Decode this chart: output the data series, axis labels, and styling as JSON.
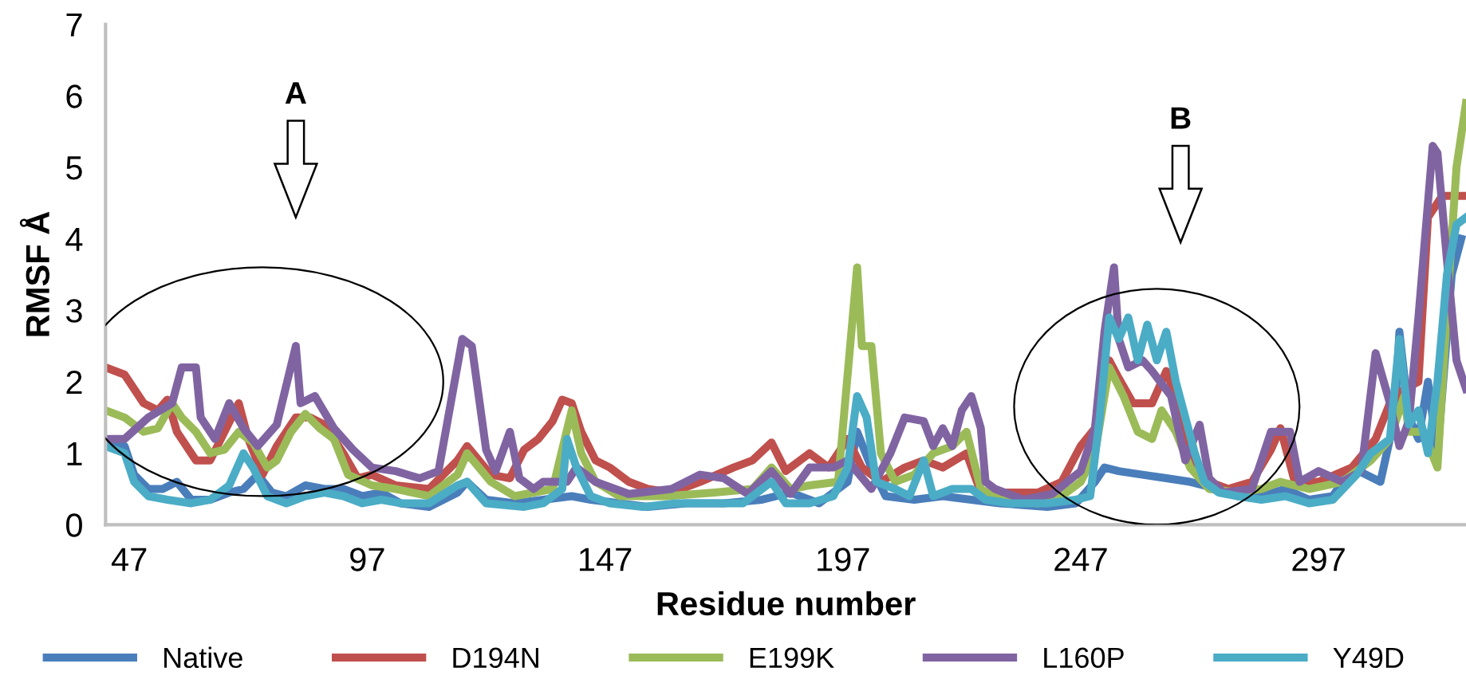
{
  "chart_data": {
    "type": "line",
    "xlabel": "Residue number",
    "ylabel": "RMSF Å",
    "xlim": [
      42,
      328
    ],
    "xticks": [
      47,
      97,
      147,
      197,
      247,
      297
    ],
    "ylim": [
      0,
      7
    ],
    "yticks": [
      0,
      1,
      2,
      3,
      4,
      5,
      6,
      7
    ],
    "grid": false,
    "legend": "bottom",
    "marker": "none",
    "line_style": "solid",
    "annotations": [
      "A",
      "B"
    ],
    "series": [
      {
        "name": "Native",
        "color": "#4a7ebb",
        "x": [
          42,
          46,
          48,
          51,
          54,
          57,
          60,
          64,
          68,
          71,
          74,
          77,
          80,
          84,
          88,
          92,
          96,
          100,
          104,
          110,
          116,
          118,
          122,
          128,
          134,
          140,
          144,
          150,
          156,
          164,
          172,
          180,
          186,
          192,
          198,
          200,
          203,
          206,
          212,
          218,
          224,
          230,
          240,
          246,
          250,
          252,
          255,
          260,
          265,
          270,
          273,
          276,
          280,
          285,
          290,
          295,
          300,
          304,
          310,
          313,
          314,
          316,
          318,
          320,
          322,
          325,
          327
        ],
        "values": [
          1.2,
          1.1,
          0.7,
          0.5,
          0.5,
          0.6,
          0.35,
          0.35,
          0.45,
          0.5,
          0.7,
          0.45,
          0.4,
          0.55,
          0.5,
          0.5,
          0.4,
          0.45,
          0.3,
          0.25,
          0.45,
          0.6,
          0.35,
          0.3,
          0.35,
          0.4,
          0.35,
          0.3,
          0.25,
          0.3,
          0.3,
          0.35,
          0.45,
          0.3,
          0.6,
          1.3,
          0.8,
          0.4,
          0.35,
          0.4,
          0.35,
          0.3,
          0.25,
          0.3,
          0.6,
          0.8,
          0.75,
          0.7,
          0.65,
          0.6,
          0.55,
          0.5,
          0.4,
          0.4,
          0.5,
          0.35,
          0.4,
          0.8,
          0.6,
          1.5,
          2.7,
          1.5,
          1.2,
          2.0,
          1.0,
          3.5,
          4.0
        ]
      },
      {
        "name": "D194N",
        "color": "#c0504d",
        "x": [
          42,
          46,
          50,
          53,
          55,
          57,
          61,
          64,
          67,
          70,
          72,
          75,
          78,
          82,
          85,
          88,
          92,
          95,
          98,
          103,
          110,
          116,
          118,
          123,
          127,
          130,
          133,
          136,
          138,
          140,
          142,
          145,
          148,
          152,
          156,
          161,
          167,
          174,
          178,
          182,
          185,
          190,
          194,
          198,
          201,
          205,
          210,
          214,
          218,
          223,
          226,
          230,
          238,
          243,
          247,
          250,
          253,
          255,
          258,
          262,
          265,
          268,
          271,
          274,
          278,
          283,
          287,
          289,
          292,
          297,
          304,
          309,
          312,
          315,
          318,
          320,
          323,
          326,
          328
        ],
        "values": [
          2.2,
          2.1,
          1.7,
          1.6,
          1.75,
          1.3,
          0.9,
          0.9,
          1.3,
          1.7,
          1.2,
          0.7,
          1.1,
          1.5,
          1.5,
          1.4,
          1.0,
          0.65,
          0.7,
          0.55,
          0.5,
          0.9,
          1.1,
          0.7,
          0.65,
          1.05,
          1.2,
          1.45,
          1.75,
          1.7,
          1.3,
          0.9,
          0.8,
          0.6,
          0.5,
          0.45,
          0.6,
          0.8,
          0.9,
          1.15,
          0.75,
          1.0,
          0.8,
          1.2,
          0.8,
          0.6,
          0.8,
          0.9,
          0.8,
          1.0,
          0.45,
          0.45,
          0.45,
          0.6,
          1.1,
          1.35,
          2.3,
          2.05,
          1.7,
          1.7,
          2.15,
          1.6,
          0.8,
          0.6,
          0.5,
          0.6,
          1.05,
          1.35,
          0.6,
          0.6,
          0.8,
          1.2,
          1.7,
          1.9,
          2.0,
          4.3,
          4.6,
          4.6,
          4.6
        ]
      },
      {
        "name": "E199K",
        "color": "#9bbb59",
        "x": [
          42,
          46,
          50,
          53,
          56,
          58,
          61,
          64,
          67,
          70,
          73,
          76,
          78,
          81,
          84,
          87,
          90,
          93,
          98,
          103,
          110,
          116,
          118,
          123,
          128,
          132,
          136,
          140,
          142,
          145,
          150,
          160,
          170,
          178,
          182,
          186,
          190,
          196,
          200,
          201,
          203,
          205,
          208,
          212,
          216,
          220,
          223,
          226,
          230,
          238,
          243,
          247,
          250,
          253,
          256,
          259,
          262,
          264,
          267,
          270,
          274,
          280,
          285,
          289,
          295,
          302,
          308,
          312,
          315,
          316,
          319,
          322,
          324,
          326,
          328
        ],
        "values": [
          1.6,
          1.5,
          1.3,
          1.35,
          1.7,
          1.5,
          1.3,
          1.0,
          1.05,
          1.3,
          1.15,
          0.8,
          0.9,
          1.3,
          1.55,
          1.35,
          1.2,
          0.7,
          0.55,
          0.5,
          0.4,
          0.7,
          1.0,
          0.6,
          0.4,
          0.45,
          0.5,
          1.6,
          1.0,
          0.6,
          0.4,
          0.4,
          0.45,
          0.5,
          0.8,
          0.5,
          0.55,
          0.6,
          3.6,
          2.5,
          2.5,
          1.0,
          0.6,
          0.7,
          1.0,
          1.1,
          1.3,
          0.5,
          0.35,
          0.3,
          0.4,
          0.6,
          1.0,
          2.2,
          1.8,
          1.3,
          1.2,
          1.6,
          1.3,
          0.8,
          0.5,
          0.45,
          0.5,
          0.6,
          0.5,
          0.6,
          0.9,
          1.2,
          1.8,
          1.3,
          1.3,
          0.8,
          3.0,
          5.0,
          5.9
        ]
      },
      {
        "name": "L160P",
        "color": "#8064a2",
        "x": [
          42,
          46,
          51,
          56,
          58,
          61,
          62,
          65,
          68,
          71,
          74,
          78,
          82,
          83,
          86,
          90,
          94,
          98,
          103,
          108,
          112,
          117,
          119,
          122,
          124,
          127,
          129,
          132,
          134,
          139,
          141,
          145,
          152,
          161,
          167,
          172,
          177,
          182,
          186,
          190,
          195,
          198,
          203,
          207,
          210,
          214,
          216,
          218,
          220,
          222,
          224,
          226,
          227,
          229,
          235,
          241,
          247,
          250,
          252,
          254,
          255,
          257,
          260,
          262,
          266,
          269,
          272,
          274,
          277,
          283,
          287,
          291,
          293,
          297,
          302,
          306,
          309,
          312,
          314,
          316,
          318,
          321,
          322,
          324,
          326,
          328
        ],
        "values": [
          1.2,
          1.2,
          1.5,
          1.7,
          2.2,
          2.2,
          1.5,
          1.2,
          1.7,
          1.35,
          1.1,
          1.4,
          2.5,
          1.7,
          1.8,
          1.35,
          1.05,
          0.8,
          0.75,
          0.65,
          0.75,
          2.6,
          2.5,
          1.05,
          0.75,
          1.3,
          0.65,
          0.5,
          0.6,
          0.6,
          0.8,
          0.6,
          0.43,
          0.5,
          0.7,
          0.65,
          0.43,
          0.75,
          0.43,
          0.8,
          0.8,
          0.9,
          0.5,
          1.0,
          1.5,
          1.45,
          1.1,
          1.35,
          1.1,
          1.6,
          1.8,
          1.35,
          0.6,
          0.5,
          0.35,
          0.43,
          0.75,
          1.35,
          2.7,
          3.6,
          2.6,
          2.2,
          2.3,
          2.15,
          1.8,
          0.9,
          1.4,
          0.65,
          0.45,
          0.5,
          1.3,
          1.3,
          0.6,
          0.75,
          0.6,
          0.75,
          2.4,
          1.7,
          1.1,
          1.45,
          2.9,
          5.3,
          5.2,
          3.7,
          2.3,
          1.9
        ]
      },
      {
        "name": "Y49D",
        "color": "#4bacc6",
        "x": [
          42,
          46,
          48,
          51,
          55,
          60,
          64,
          68,
          71,
          73,
          76,
          80,
          84,
          88,
          92,
          96,
          100,
          104,
          110,
          116,
          118,
          122,
          130,
          134,
          138,
          139,
          141,
          144,
          148,
          155,
          162,
          170,
          176,
          182,
          185,
          190,
          195,
          198,
          200,
          202,
          204,
          208,
          211,
          214,
          216,
          220,
          224,
          227,
          232,
          240,
          246,
          249,
          251,
          253,
          255,
          257,
          259,
          261,
          263,
          265,
          267,
          269,
          271,
          273,
          276,
          280,
          285,
          290,
          295,
          300,
          305,
          308,
          312,
          314,
          316,
          318,
          320,
          322,
          324,
          326,
          328
        ],
        "values": [
          1.1,
          1.0,
          0.6,
          0.4,
          0.35,
          0.3,
          0.35,
          0.55,
          1.0,
          0.8,
          0.4,
          0.3,
          0.4,
          0.45,
          0.4,
          0.3,
          0.35,
          0.3,
          0.3,
          0.55,
          0.6,
          0.3,
          0.25,
          0.3,
          0.5,
          1.2,
          0.8,
          0.4,
          0.3,
          0.25,
          0.3,
          0.3,
          0.3,
          0.6,
          0.3,
          0.3,
          0.4,
          0.8,
          1.8,
          1.5,
          0.6,
          0.5,
          0.4,
          0.9,
          0.4,
          0.5,
          0.5,
          0.35,
          0.3,
          0.3,
          0.35,
          0.4,
          1.5,
          2.9,
          2.6,
          2.9,
          2.3,
          2.8,
          2.3,
          2.7,
          2.0,
          1.5,
          1.0,
          0.6,
          0.45,
          0.4,
          0.35,
          0.4,
          0.3,
          0.35,
          0.7,
          1.0,
          1.2,
          2.6,
          1.4,
          1.6,
          1.0,
          2.0,
          3.5,
          4.2,
          4.3
        ]
      }
    ]
  }
}
